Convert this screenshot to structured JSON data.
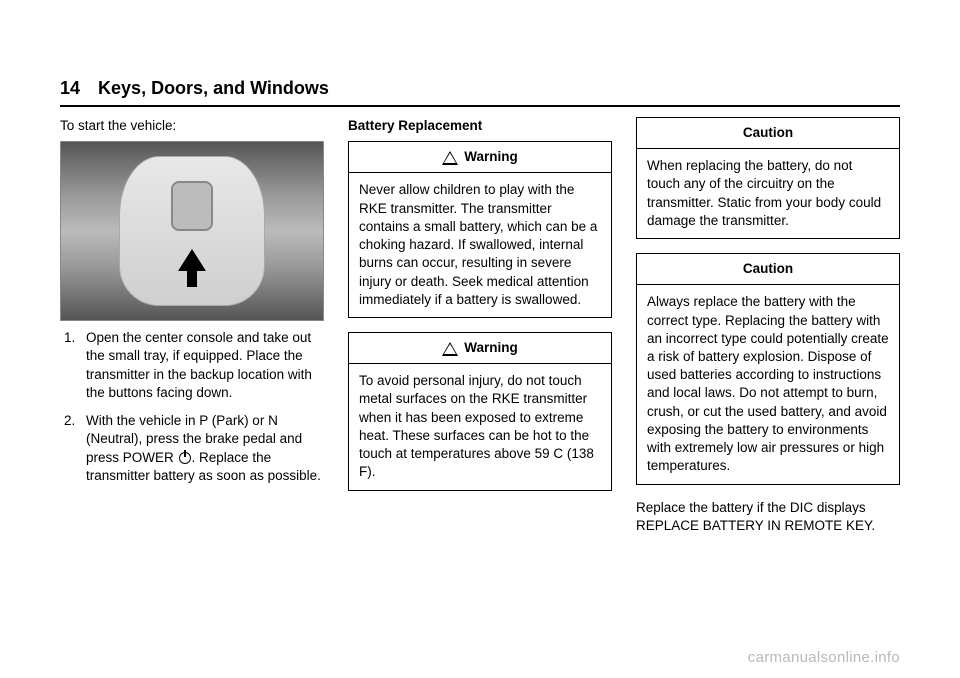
{
  "header": {
    "page_number": "14",
    "section": "Keys, Doors, and Windows"
  },
  "col1": {
    "intro": "To start the vehicle:",
    "step1": "Open the center console and take out the small tray, if equipped. Place the transmitter in the backup location with the buttons facing down.",
    "step2a": "With the vehicle in P (Park) or N (Neutral), press the brake pedal and press POWER",
    "step2b": ". Replace the transmitter battery as soon as possible."
  },
  "col2": {
    "subhead": "Battery Replacement",
    "warning_label": "Warning",
    "warning1": "Never allow children to play with the RKE transmitter. The transmitter contains a small battery, which can be a choking hazard. If swallowed, internal burns can occur, resulting in severe injury or death. Seek medical attention immediately if a battery is swallowed.",
    "warning2": "To avoid personal injury, do not touch metal surfaces on the RKE transmitter when it has been exposed to extreme heat. These surfaces can be hot to the touch at temperatures above 59  C (138  F)."
  },
  "col3": {
    "caution_label": "Caution",
    "caution1": "When replacing the battery, do not touch any of the circuitry on the transmitter. Static from your body could damage the transmitter.",
    "caution2": "Always replace the battery with the correct type. Replacing the battery with an incorrect type could potentially create a risk of battery explosion. Dispose of used batteries according to instructions and local laws. Do not attempt to burn, crush, or cut the used battery, and avoid exposing the battery to environments with extremely low air pressures or high temperatures.",
    "closing": "Replace the battery if the DIC displays REPLACE BATTERY IN REMOTE KEY."
  },
  "watermark": "carmanualsonline.info"
}
